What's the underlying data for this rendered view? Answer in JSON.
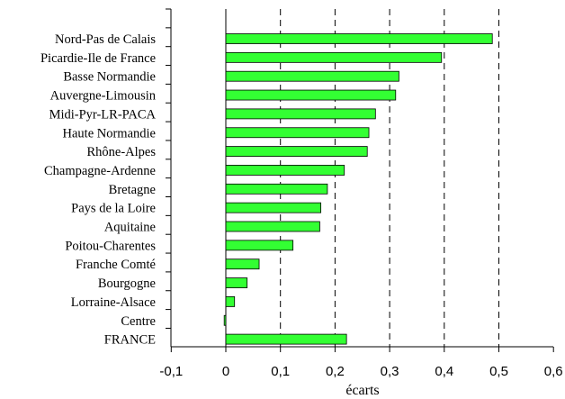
{
  "chart_data": {
    "type": "bar",
    "orientation": "horizontal",
    "categories": [
      "Nord-Pas de Calais",
      "Picardie-Ile de France",
      "Basse Normandie",
      "Auvergne-Limousin",
      "Midi-Pyr-LR-PACA",
      "Haute Normandie",
      "Rhône-Alpes",
      "Champagne-Ardenne",
      "Bretagne",
      "Pays de la Loire",
      "Aquitaine",
      "Poitou-Charentes",
      "Franche Comté",
      "Bourgogne",
      "Lorraine-Alsace",
      "Centre",
      "FRANCE"
    ],
    "values": [
      0.488,
      0.395,
      0.317,
      0.311,
      0.274,
      0.262,
      0.259,
      0.217,
      0.186,
      0.174,
      0.172,
      0.123,
      0.061,
      0.039,
      0.016,
      -0.003,
      0.221
    ],
    "xlabel": "écarts",
    "ylabel": "",
    "title": "",
    "xlim": [
      -0.1,
      0.6
    ],
    "xticks": [
      "-0,1",
      "0",
      "0,1",
      "0,2",
      "0,3",
      "0,4",
      "0,5",
      "0,6"
    ],
    "gridlines": "vertical dashed at 0,1 to 0,5",
    "bar_color": "#33ff33",
    "bar_stroke": "#000000"
  }
}
